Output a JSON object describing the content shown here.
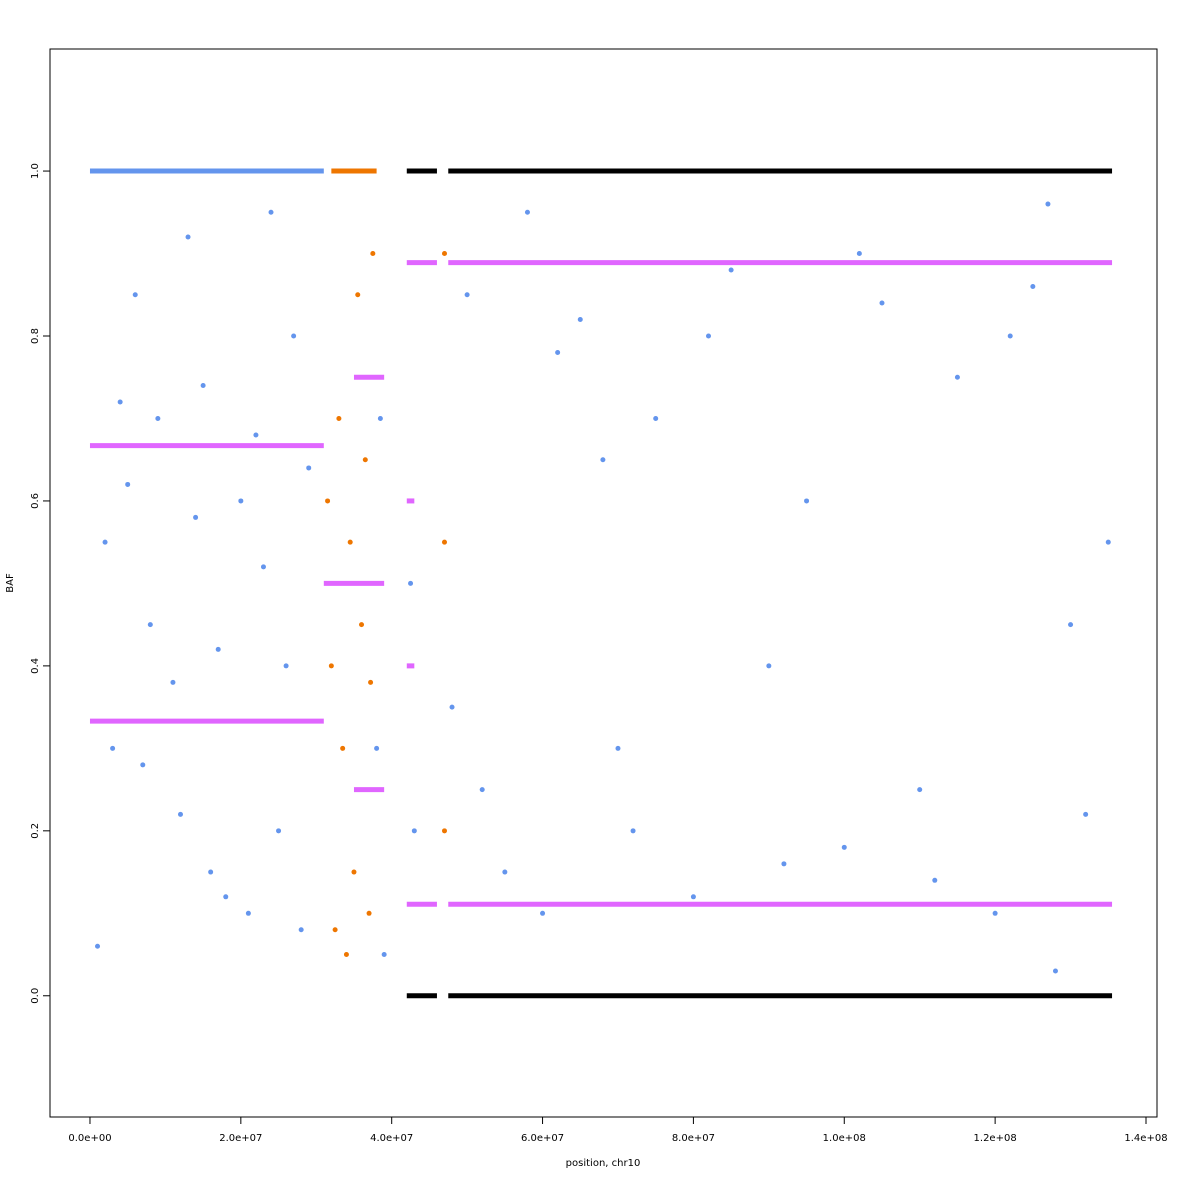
{
  "chart_data": {
    "type": "scatter",
    "xlabel": "position, chr10",
    "ylabel": "BAF",
    "xlim": [
      -5300000,
      141460000
    ],
    "ylim": [
      -0.147,
      1.148
    ],
    "xticks": [
      {
        "value": 0,
        "label": "0.0e+00"
      },
      {
        "value": 20000000,
        "label": "2.0e+07"
      },
      {
        "value": 40000000,
        "label": "4.0e+07"
      },
      {
        "value": 60000000,
        "label": "6.0e+07"
      },
      {
        "value": 80000000,
        "label": "8.0e+07"
      },
      {
        "value": 100000000,
        "label": "1.0e+08"
      },
      {
        "value": 120000000,
        "label": "1.2e+08"
      },
      {
        "value": 140000000,
        "label": "1.4e+08"
      }
    ],
    "yticks": [
      {
        "value": 0,
        "label": "0.0"
      },
      0.2,
      0.4,
      0.6,
      0.8,
      {
        "value": 1,
        "label": "1.0"
      }
    ],
    "series": [
      {
        "color": "#6495ed",
        "x": [
          2000000,
          5000000,
          8000000,
          11000000,
          14000000,
          17000000,
          20000000,
          23000000,
          26000000,
          29000000,
          3000000,
          7000000,
          12000000,
          16000000,
          21000000,
          25000000,
          28000000,
          4000000,
          9000000,
          15000000,
          22000000,
          27000000,
          6000000,
          13000000,
          18000000,
          1000000,
          24000000,
          38000000,
          38500000,
          39000000,
          42500000,
          43000000,
          50000000,
          55000000,
          60000000,
          65000000,
          70000000,
          75000000,
          80000000,
          85000000,
          90000000,
          95000000,
          100000000,
          105000000,
          110000000,
          115000000,
          120000000,
          125000000,
          128000000,
          130000000,
          135000000,
          52000000,
          62000000,
          72000000,
          82000000,
          92000000,
          102000000,
          112000000,
          122000000,
          132000000,
          58000000,
          127000000,
          48000000,
          68000000
        ],
        "values": [
          0.55,
          0.62,
          0.45,
          0.38,
          0.58,
          0.42,
          0.6,
          0.52,
          0.4,
          0.64,
          0.3,
          0.28,
          0.22,
          0.15,
          0.1,
          0.2,
          0.08,
          0.72,
          0.7,
          0.74,
          0.68,
          0.8,
          0.85,
          0.92,
          0.12,
          0.06,
          0.95,
          0.3,
          0.7,
          0.05,
          0.5,
          0.2,
          0.85,
          0.15,
          0.1,
          0.82,
          0.3,
          0.7,
          0.12,
          0.88,
          0.4,
          0.6,
          0.18,
          0.84,
          0.25,
          0.75,
          0.1,
          0.86,
          0.03,
          0.45,
          0.55,
          0.25,
          0.78,
          0.2,
          0.8,
          0.16,
          0.9,
          0.14,
          0.8,
          0.22,
          0.95,
          0.96,
          0.35,
          0.65
        ]
      },
      {
        "color": "#ee7600",
        "x": [
          31500000,
          32000000,
          33000000,
          33500000,
          34500000,
          35000000,
          36000000,
          36500000,
          37000000,
          37500000,
          32500000,
          35500000,
          37200000,
          47000000,
          47000000,
          47000000,
          34000000
        ],
        "values": [
          0.6,
          0.4,
          0.7,
          0.3,
          0.55,
          0.15,
          0.45,
          0.65,
          0.1,
          0.9,
          0.08,
          0.85,
          0.38,
          0.9,
          0.2,
          0.55,
          0.05
        ]
      }
    ],
    "segments": [
      {
        "color": "#6495ed",
        "x0": 0,
        "x1": 31000000,
        "value": 1
      },
      {
        "color": "#ee7600",
        "x0": 32000000,
        "x1": 38000000,
        "value": 1
      },
      {
        "color": "#000000",
        "x0": 42000000,
        "x1": 46000000,
        "value": 1
      },
      {
        "color": "#000000",
        "x0": 47500000,
        "x1": 135500000,
        "value": 1
      },
      {
        "color": "#000000",
        "x0": 42000000,
        "x1": 46000000,
        "value": 0
      },
      {
        "color": "#000000",
        "x0": 47500000,
        "x1": 135500000,
        "value": 0
      },
      {
        "color": "#e066ff",
        "x0": 0,
        "x1": 31000000,
        "value": 0.667
      },
      {
        "color": "#e066ff",
        "x0": 0,
        "x1": 31000000,
        "value": 0.333
      },
      {
        "color": "#e066ff",
        "x0": 35000000,
        "x1": 39000000,
        "value": 0.75
      },
      {
        "color": "#e066ff",
        "x0": 35000000,
        "x1": 39000000,
        "value": 0.25
      },
      {
        "color": "#e066ff",
        "x0": 31000000,
        "x1": 39000000,
        "value": 0.5
      },
      {
        "color": "#e066ff",
        "x0": 42000000,
        "x1": 46000000,
        "value": 0.889
      },
      {
        "color": "#e066ff",
        "x0": 47500000,
        "x1": 135500000,
        "value": 0.889
      },
      {
        "color": "#e066ff",
        "x0": 42000000,
        "x1": 46000000,
        "value": 0.111
      },
      {
        "color": "#e066ff",
        "x0": 47500000,
        "x1": 135500000,
        "value": 0.111
      },
      {
        "color": "#e066ff",
        "x0": 42000000,
        "x1": 43000000,
        "value": 0.6
      },
      {
        "color": "#e066ff",
        "x0": 42000000,
        "x1": 43000000,
        "value": 0.4
      }
    ]
  }
}
